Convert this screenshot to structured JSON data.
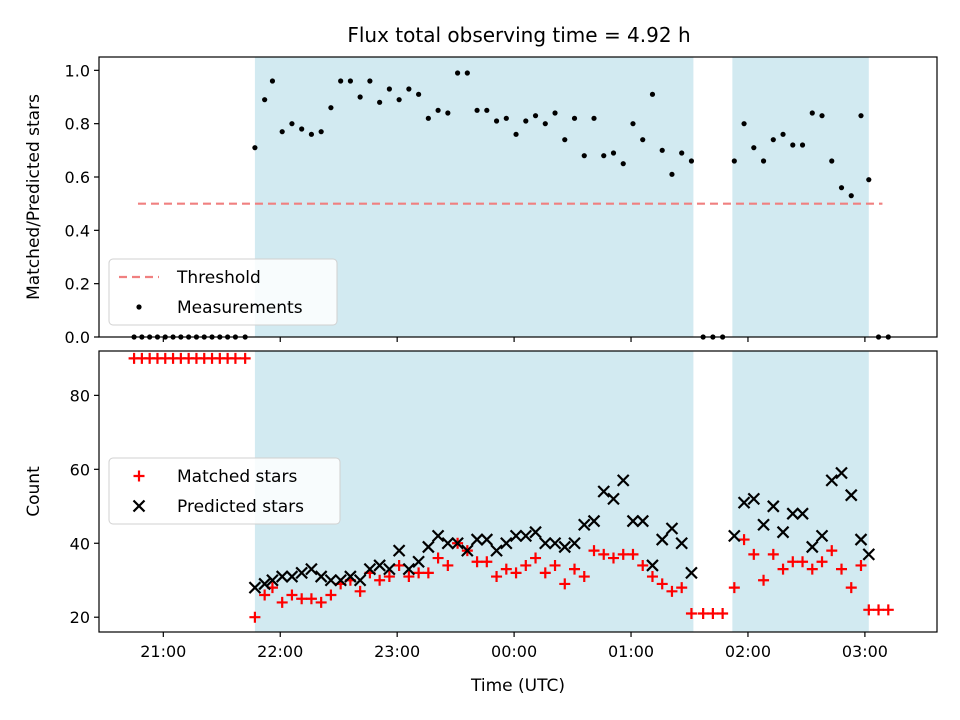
{
  "chart_data": [
    {
      "type": "scatter",
      "title": "Flux total observing time = 4.92 h",
      "ylabel": "Matched/Predicted stars",
      "xlabel": "",
      "ylim": [
        0,
        1.05
      ],
      "yticks": [
        0.0,
        0.2,
        0.4,
        0.6,
        0.8,
        1.0
      ],
      "ytick_labels": [
        "0.0",
        "0.2",
        "0.4",
        "0.6",
        "0.8",
        "1.0"
      ],
      "xlim": [
        "20:27",
        "03:37"
      ],
      "xticks": [
        "21:00",
        "22:00",
        "23:00",
        "00:00",
        "01:00",
        "02:00",
        "03:00"
      ],
      "shaded_intervals": [
        [
          "21:47",
          "01:32"
        ],
        [
          "01:52",
          "03:02"
        ]
      ],
      "shade_color": "#add8e6",
      "threshold": {
        "label": "Threshold",
        "y": 0.5,
        "x_range": [
          "20:47",
          "03:09"
        ],
        "color": "#f08080"
      },
      "legend_position": "lower left",
      "legend": [
        "Threshold",
        "Measurements"
      ],
      "series": [
        {
          "name": "Measurements",
          "color": "#000000",
          "points": [
            [
              "20:45",
              0
            ],
            [
              "20:49",
              0
            ],
            [
              "20:53",
              0
            ],
            [
              "20:57",
              0
            ],
            [
              "21:01",
              0
            ],
            [
              "21:05",
              0
            ],
            [
              "21:09",
              0
            ],
            [
              "21:13",
              0
            ],
            [
              "21:17",
              0
            ],
            [
              "21:21",
              0
            ],
            [
              "21:25",
              0
            ],
            [
              "21:29",
              0
            ],
            [
              "21:33",
              0
            ],
            [
              "21:37",
              0
            ],
            [
              "21:42",
              0
            ],
            [
              "21:47",
              0.71
            ],
            [
              "21:52",
              0.89
            ],
            [
              "21:56",
              0.96
            ],
            [
              "22:01",
              0.77
            ],
            [
              "22:06",
              0.8
            ],
            [
              "22:11",
              0.78
            ],
            [
              "22:16",
              0.76
            ],
            [
              "22:21",
              0.77
            ],
            [
              "22:26",
              0.86
            ],
            [
              "22:31",
              0.96
            ],
            [
              "22:36",
              0.96
            ],
            [
              "22:41",
              0.9
            ],
            [
              "22:46",
              0.96
            ],
            [
              "22:51",
              0.88
            ],
            [
              "22:56",
              0.93
            ],
            [
              "23:01",
              0.89
            ],
            [
              "23:06",
              0.93
            ],
            [
              "23:11",
              0.91
            ],
            [
              "23:16",
              0.82
            ],
            [
              "23:21",
              0.85
            ],
            [
              "23:26",
              0.84
            ],
            [
              "23:31",
              0.99
            ],
            [
              "23:36",
              0.99
            ],
            [
              "23:41",
              0.85
            ],
            [
              "23:46",
              0.85
            ],
            [
              "23:51",
              0.81
            ],
            [
              "23:56",
              0.82
            ],
            [
              "00:01",
              0.76
            ],
            [
              "00:06",
              0.81
            ],
            [
              "00:11",
              0.83
            ],
            [
              "00:16",
              0.8
            ],
            [
              "00:21",
              0.84
            ],
            [
              "00:26",
              0.74
            ],
            [
              "00:31",
              0.82
            ],
            [
              "00:36",
              0.68
            ],
            [
              "00:41",
              0.82
            ],
            [
              "00:46",
              0.68
            ],
            [
              "00:51",
              0.69
            ],
            [
              "00:56",
              0.65
            ],
            [
              "01:01",
              0.8
            ],
            [
              "01:06",
              0.74
            ],
            [
              "01:11",
              0.91
            ],
            [
              "01:16",
              0.7
            ],
            [
              "01:21",
              0.61
            ],
            [
              "01:26",
              0.69
            ],
            [
              "01:31",
              0.66
            ],
            [
              "01:37",
              0
            ],
            [
              "01:42",
              0
            ],
            [
              "01:47",
              0
            ],
            [
              "01:53",
              0.66
            ],
            [
              "01:58",
              0.8
            ],
            [
              "02:03",
              0.71
            ],
            [
              "02:08",
              0.66
            ],
            [
              "02:13",
              0.74
            ],
            [
              "02:18",
              0.76
            ],
            [
              "02:23",
              0.72
            ],
            [
              "02:28",
              0.72
            ],
            [
              "02:33",
              0.84
            ],
            [
              "02:38",
              0.83
            ],
            [
              "02:43",
              0.66
            ],
            [
              "02:48",
              0.56
            ],
            [
              "02:53",
              0.53
            ],
            [
              "02:58",
              0.83
            ],
            [
              "03:02",
              0.59
            ],
            [
              "03:07",
              0
            ],
            [
              "03:12",
              0
            ]
          ]
        }
      ]
    },
    {
      "type": "scatter",
      "title": "",
      "xlabel": "Time (UTC)",
      "ylabel": "Count",
      "ylim": [
        16,
        92
      ],
      "yticks": [
        20,
        40,
        60,
        80
      ],
      "ytick_labels": [
        "20",
        "40",
        "60",
        "80"
      ],
      "xlim": [
        "20:27",
        "03:37"
      ],
      "xticks": [
        "21:00",
        "22:00",
        "23:00",
        "00:00",
        "01:00",
        "02:00",
        "03:00"
      ],
      "xtick_labels": [
        "21:00",
        "22:00",
        "23:00",
        "00:00",
        "01:00",
        "02:00",
        "03:00"
      ],
      "shaded_intervals": [
        [
          "21:47",
          "01:32"
        ],
        [
          "01:52",
          "03:02"
        ]
      ],
      "shade_color": "#add8e6",
      "legend_position": "center left",
      "legend": [
        "Matched stars",
        "Predicted stars"
      ],
      "series": [
        {
          "name": "Matched stars",
          "marker": "plus",
          "color": "#ff0000",
          "points": [
            [
              "20:45",
              90
            ],
            [
              "20:49",
              90
            ],
            [
              "20:53",
              90
            ],
            [
              "20:57",
              90
            ],
            [
              "21:01",
              90
            ],
            [
              "21:05",
              90
            ],
            [
              "21:09",
              90
            ],
            [
              "21:13",
              90
            ],
            [
              "21:17",
              90
            ],
            [
              "21:21",
              90
            ],
            [
              "21:25",
              90
            ],
            [
              "21:29",
              90
            ],
            [
              "21:33",
              90
            ],
            [
              "21:37",
              90
            ],
            [
              "21:42",
              90
            ],
            [
              "21:47",
              20
            ],
            [
              "21:52",
              26
            ],
            [
              "21:56",
              28
            ],
            [
              "22:01",
              24
            ],
            [
              "22:06",
              26
            ],
            [
              "22:11",
              25
            ],
            [
              "22:16",
              25
            ],
            [
              "22:21",
              24
            ],
            [
              "22:26",
              26
            ],
            [
              "22:31",
              29
            ],
            [
              "22:36",
              30
            ],
            [
              "22:41",
              27
            ],
            [
              "22:46",
              32
            ],
            [
              "22:51",
              30
            ],
            [
              "22:56",
              31
            ],
            [
              "23:01",
              34
            ],
            [
              "23:06",
              31
            ],
            [
              "23:11",
              32
            ],
            [
              "23:16",
              32
            ],
            [
              "23:21",
              36
            ],
            [
              "23:26",
              34
            ],
            [
              "23:31",
              40
            ],
            [
              "23:36",
              38
            ],
            [
              "23:41",
              35
            ],
            [
              "23:46",
              35
            ],
            [
              "23:51",
              31
            ],
            [
              "23:56",
              33
            ],
            [
              "00:01",
              32
            ],
            [
              "00:06",
              34
            ],
            [
              "00:11",
              36
            ],
            [
              "00:16",
              32
            ],
            [
              "00:21",
              34
            ],
            [
              "00:26",
              29
            ],
            [
              "00:31",
              33
            ],
            [
              "00:36",
              31
            ],
            [
              "00:41",
              38
            ],
            [
              "00:46",
              37
            ],
            [
              "00:51",
              36
            ],
            [
              "00:56",
              37
            ],
            [
              "01:01",
              37
            ],
            [
              "01:06",
              34
            ],
            [
              "01:11",
              31
            ],
            [
              "01:16",
              29
            ],
            [
              "01:21",
              27
            ],
            [
              "01:26",
              28
            ],
            [
              "01:31",
              21
            ],
            [
              "01:37",
              21
            ],
            [
              "01:42",
              21
            ],
            [
              "01:47",
              21
            ],
            [
              "01:53",
              28
            ],
            [
              "01:58",
              41
            ],
            [
              "02:03",
              37
            ],
            [
              "02:08",
              30
            ],
            [
              "02:13",
              37
            ],
            [
              "02:18",
              33
            ],
            [
              "02:23",
              35
            ],
            [
              "02:28",
              35
            ],
            [
              "02:33",
              33
            ],
            [
              "02:38",
              35
            ],
            [
              "02:43",
              38
            ],
            [
              "02:48",
              33
            ],
            [
              "02:53",
              28
            ],
            [
              "02:58",
              34
            ],
            [
              "03:02",
              22
            ],
            [
              "03:07",
              22
            ],
            [
              "03:12",
              22
            ]
          ]
        },
        {
          "name": "Predicted stars",
          "marker": "x",
          "color": "#000000",
          "points": [
            [
              "21:47",
              28
            ],
            [
              "21:52",
              29
            ],
            [
              "21:56",
              30
            ],
            [
              "22:01",
              31
            ],
            [
              "22:06",
              31
            ],
            [
              "22:11",
              32
            ],
            [
              "22:16",
              33
            ],
            [
              "22:21",
              31
            ],
            [
              "22:26",
              30
            ],
            [
              "22:31",
              30
            ],
            [
              "22:36",
              31
            ],
            [
              "22:41",
              30
            ],
            [
              "22:46",
              33
            ],
            [
              "22:51",
              34
            ],
            [
              "22:56",
              33
            ],
            [
              "23:01",
              38
            ],
            [
              "23:06",
              33
            ],
            [
              "23:11",
              35
            ],
            [
              "23:16",
              39
            ],
            [
              "23:21",
              42
            ],
            [
              "23:26",
              40
            ],
            [
              "23:31",
              40
            ],
            [
              "23:36",
              38
            ],
            [
              "23:41",
              41
            ],
            [
              "23:46",
              41
            ],
            [
              "23:51",
              38
            ],
            [
              "23:56",
              40
            ],
            [
              "00:01",
              42
            ],
            [
              "00:06",
              42
            ],
            [
              "00:11",
              43
            ],
            [
              "00:16",
              40
            ],
            [
              "00:21",
              40
            ],
            [
              "00:26",
              39
            ],
            [
              "00:31",
              40
            ],
            [
              "00:36",
              45
            ],
            [
              "00:41",
              46
            ],
            [
              "00:46",
              54
            ],
            [
              "00:51",
              52
            ],
            [
              "00:56",
              57
            ],
            [
              "01:01",
              46
            ],
            [
              "01:06",
              46
            ],
            [
              "01:11",
              34
            ],
            [
              "01:16",
              41
            ],
            [
              "01:21",
              44
            ],
            [
              "01:26",
              40
            ],
            [
              "01:31",
              32
            ],
            [
              "01:53",
              42
            ],
            [
              "01:58",
              51
            ],
            [
              "02:03",
              52
            ],
            [
              "02:08",
              45
            ],
            [
              "02:13",
              50
            ],
            [
              "02:18",
              43
            ],
            [
              "02:23",
              48
            ],
            [
              "02:28",
              48
            ],
            [
              "02:33",
              39
            ],
            [
              "02:38",
              42
            ],
            [
              "02:43",
              57
            ],
            [
              "02:48",
              59
            ],
            [
              "02:53",
              53
            ],
            [
              "02:58",
              41
            ],
            [
              "03:02",
              37
            ]
          ]
        }
      ]
    }
  ]
}
